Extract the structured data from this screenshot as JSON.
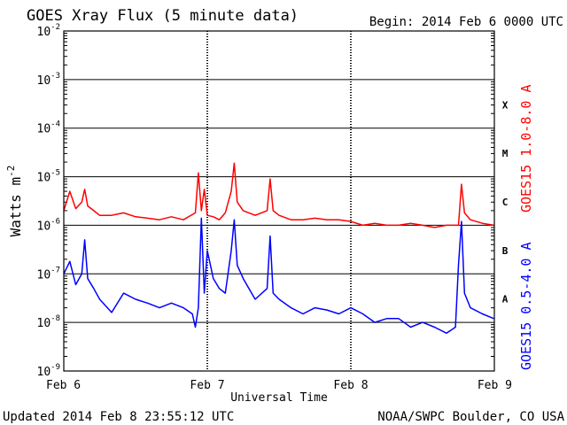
{
  "header": {
    "title": "GOES Xray Flux (5 minute data)",
    "begin": "Begin:  2014 Feb 6 0000 UTC"
  },
  "footer": {
    "updated": "Updated 2014 Feb  8 23:55:12 UTC",
    "credit": "NOAA/SWPC Boulder, CO USA"
  },
  "colors": {
    "long_channel": "#ff0000",
    "short_channel": "#0000ff",
    "axis": "#000000",
    "background": "#ffffff"
  },
  "chart_data": {
    "type": "line",
    "title": "GOES Xray Flux (5 minute data)",
    "xlabel": "Universal Time",
    "ylabel_base": "Watts m",
    "ylabel_exp": "-2",
    "yscale": "log",
    "ylim": [
      1e-09,
      0.01
    ],
    "xlim": [
      "2014-02-06 00:00",
      "2014-02-09 00:00"
    ],
    "x_ticks": [
      "Feb 6",
      "Feb 7",
      "Feb 8",
      "Feb 9"
    ],
    "y_ticks": [
      {
        "base": "10",
        "exp": "-2"
      },
      {
        "base": "10",
        "exp": "-3"
      },
      {
        "base": "10",
        "exp": "-4"
      },
      {
        "base": "10",
        "exp": "-5"
      },
      {
        "base": "10",
        "exp": "-6"
      },
      {
        "base": "10",
        "exp": "-7"
      },
      {
        "base": "10",
        "exp": "-8"
      },
      {
        "base": "10",
        "exp": "-9"
      }
    ],
    "flare_classes": [
      "X",
      "M",
      "C",
      "B",
      "A"
    ],
    "grid": "horizontal lines at each decade",
    "series": [
      {
        "name": "GOES15 1.0-8.0 A",
        "x": [
          "2014-02-06 00:00",
          "2014-02-06 01:00",
          "2014-02-06 02:00",
          "2014-02-06 03:00",
          "2014-02-06 03:30",
          "2014-02-06 04:00",
          "2014-02-06 05:00",
          "2014-02-06 06:00",
          "2014-02-06 08:00",
          "2014-02-06 10:00",
          "2014-02-06 12:00",
          "2014-02-06 14:00",
          "2014-02-06 16:00",
          "2014-02-06 18:00",
          "2014-02-06 20:00",
          "2014-02-06 22:00",
          "2014-02-06 22:30",
          "2014-02-06 23:00",
          "2014-02-06 23:30",
          "2014-02-07 00:00",
          "2014-02-07 01:00",
          "2014-02-07 02:00",
          "2014-02-07 03:00",
          "2014-02-07 04:00",
          "2014-02-07 04:30",
          "2014-02-07 05:00",
          "2014-02-07 06:00",
          "2014-02-07 08:00",
          "2014-02-07 10:00",
          "2014-02-07 10:30",
          "2014-02-07 11:00",
          "2014-02-07 12:00",
          "2014-02-07 14:00",
          "2014-02-07 16:00",
          "2014-02-07 18:00",
          "2014-02-07 20:00",
          "2014-02-07 22:00",
          "2014-02-08 00:00",
          "2014-02-08 02:00",
          "2014-02-08 04:00",
          "2014-02-08 06:00",
          "2014-02-08 08:00",
          "2014-02-08 10:00",
          "2014-02-08 12:00",
          "2014-02-08 14:00",
          "2014-02-08 16:00",
          "2014-02-08 18:00",
          "2014-02-08 18:30",
          "2014-02-08 19:00",
          "2014-02-08 20:00",
          "2014-02-08 22:00",
          "2014-02-08 23:55"
        ],
        "y": [
          2e-06,
          5e-06,
          2.2e-06,
          3e-06,
          5.5e-06,
          2.5e-06,
          2e-06,
          1.6e-06,
          1.6e-06,
          1.8e-06,
          1.5e-06,
          1.4e-06,
          1.3e-06,
          1.5e-06,
          1.3e-06,
          1.8e-06,
          1.2e-05,
          2e-06,
          5.5e-06,
          1.6e-06,
          1.5e-06,
          1.3e-06,
          1.8e-06,
          5e-06,
          1.9e-05,
          3e-06,
          2e-06,
          1.6e-06,
          2e-06,
          9e-06,
          2e-06,
          1.6e-06,
          1.3e-06,
          1.3e-06,
          1.4e-06,
          1.3e-06,
          1.3e-06,
          1.2e-06,
          1e-06,
          1.1e-06,
          1e-06,
          1e-06,
          1.1e-06,
          1e-06,
          9e-07,
          1e-06,
          1e-06,
          7e-06,
          1.8e-06,
          1.3e-06,
          1.1e-06,
          1e-06
        ]
      },
      {
        "name": "GOES15 0.5-4.0 A",
        "x": [
          "2014-02-06 00:00",
          "2014-02-06 01:00",
          "2014-02-06 02:00",
          "2014-02-06 03:00",
          "2014-02-06 03:30",
          "2014-02-06 04:00",
          "2014-02-06 05:00",
          "2014-02-06 06:00",
          "2014-02-06 08:00",
          "2014-02-06 10:00",
          "2014-02-06 12:00",
          "2014-02-06 14:00",
          "2014-02-06 16:00",
          "2014-02-06 18:00",
          "2014-02-06 20:00",
          "2014-02-06 21:30",
          "2014-02-06 22:00",
          "2014-02-06 22:30",
          "2014-02-06 23:00",
          "2014-02-06 23:30",
          "2014-02-07 00:00",
          "2014-02-07 01:00",
          "2014-02-07 02:00",
          "2014-02-07 03:00",
          "2014-02-07 04:00",
          "2014-02-07 04:30",
          "2014-02-07 05:00",
          "2014-02-07 06:00",
          "2014-02-07 08:00",
          "2014-02-07 10:00",
          "2014-02-07 10:30",
          "2014-02-07 11:00",
          "2014-02-07 12:00",
          "2014-02-07 14:00",
          "2014-02-07 16:00",
          "2014-02-07 18:00",
          "2014-02-07 20:00",
          "2014-02-07 22:00",
          "2014-02-08 00:00",
          "2014-02-08 02:00",
          "2014-02-08 04:00",
          "2014-02-08 06:00",
          "2014-02-08 08:00",
          "2014-02-08 10:00",
          "2014-02-08 12:00",
          "2014-02-08 14:00",
          "2014-02-08 16:00",
          "2014-02-08 17:30",
          "2014-02-08 18:00",
          "2014-02-08 18:30",
          "2014-02-08 19:00",
          "2014-02-08 20:00",
          "2014-02-08 22:00",
          "2014-02-08 23:55"
        ],
        "y": [
          1e-07,
          1.8e-07,
          6e-08,
          1e-07,
          5e-07,
          8e-08,
          5e-08,
          3e-08,
          1.6e-08,
          4e-08,
          3e-08,
          2.5e-08,
          2e-08,
          2.5e-08,
          2e-08,
          1.5e-08,
          8e-09,
          2e-08,
          1.4e-06,
          4e-08,
          3e-07,
          8e-08,
          5e-08,
          4e-08,
          3e-07,
          1.3e-06,
          1.5e-07,
          8e-08,
          3e-08,
          5e-08,
          6e-07,
          4e-08,
          3e-08,
          2e-08,
          1.5e-08,
          2e-08,
          1.8e-08,
          1.5e-08,
          2e-08,
          1.5e-08,
          1e-08,
          1.2e-08,
          1.2e-08,
          8e-09,
          1e-08,
          8e-09,
          6e-09,
          8e-09,
          1.5e-07,
          1.2e-06,
          4e-08,
          2e-08,
          1.5e-08,
          1.2e-08
        ]
      }
    ]
  }
}
